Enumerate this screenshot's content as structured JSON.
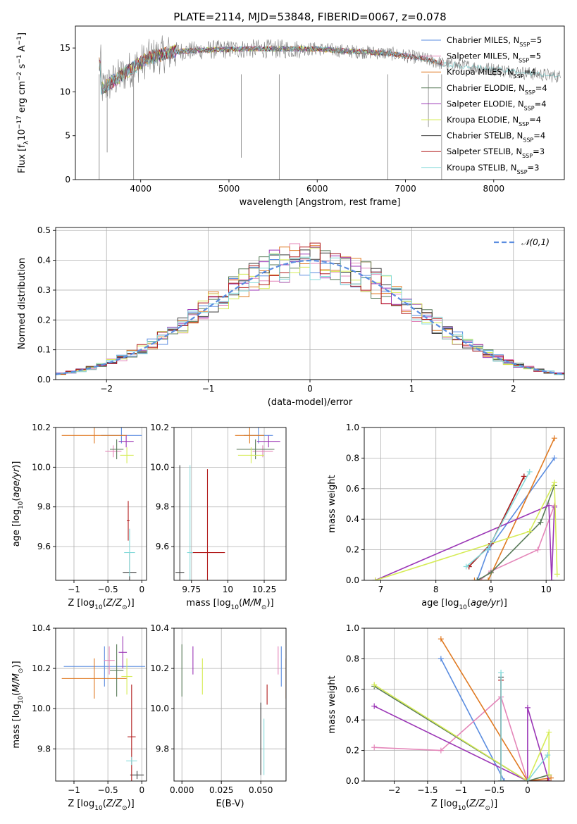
{
  "figure": {
    "title": "PLATE=2114, MJD=53848, FIBERID=0067, z=0.078"
  },
  "models": [
    {
      "key": "chabrier_miles",
      "label": "Chabrier MILES, N",
      "sub": "SSP",
      "suffix": "=5",
      "color": "#5b8de0"
    },
    {
      "key": "salpeter_miles",
      "label": "Salpeter MILES, N",
      "sub": "SSP",
      "suffix": "=5",
      "color": "#e486b9"
    },
    {
      "key": "kroupa_miles",
      "label": "Kroupa MILES, N",
      "sub": "SSP",
      "suffix": "=4",
      "color": "#e07a22"
    },
    {
      "key": "chabrier_elodie",
      "label": "Chabrier ELODIE, N",
      "sub": "SSP",
      "suffix": "=4",
      "color": "#587a58"
    },
    {
      "key": "salpeter_elodie",
      "label": "Salpeter ELODIE, N",
      "sub": "SSP",
      "suffix": "=4",
      "color": "#9b36b6"
    },
    {
      "key": "kroupa_elodie",
      "label": "Kroupa ELODIE, N",
      "sub": "SSP",
      "suffix": "=4",
      "color": "#d6ec57"
    },
    {
      "key": "chabrier_stelib",
      "label": "Chabrier STELIB, N",
      "sub": "SSP",
      "suffix": "=4",
      "color": "#3f3f3f"
    },
    {
      "key": "salpeter_stelib",
      "label": "Salpeter STELIB, N",
      "sub": "SSP",
      "suffix": "=3",
      "color": "#b21c1c"
    },
    {
      "key": "kroupa_stelib",
      "label": "Kroupa STELIB, N",
      "sub": "SSP",
      "suffix": "=3",
      "color": "#86dada"
    }
  ],
  "chart_data": [
    {
      "id": "spectrum",
      "type": "line",
      "xlabel": "wavelength [Angstrom, rest frame]",
      "ylabel": "Flux [f_λ 10^-17 erg cm^-2 s^-1 A^-1]",
      "xlim": [
        3260,
        8800
      ],
      "ylim": [
        0,
        17.5
      ],
      "xticks": [
        4000,
        5000,
        6000,
        7000,
        8000
      ],
      "yticks": [
        0,
        5,
        10,
        15
      ],
      "legend_position": "upper-right",
      "data_color": "#808080",
      "continuum": {
        "x": [
          3550,
          3700,
          3900,
          4100,
          4400,
          4800,
          5200,
          5600,
          6000,
          6400,
          6800,
          7200,
          7420
        ],
        "y": [
          10.3,
          11.3,
          12.7,
          13.9,
          14.6,
          14.8,
          14.9,
          14.9,
          14.9,
          14.6,
          14.4,
          13.8,
          13.2
        ]
      }
    },
    {
      "id": "residuals",
      "type": "histogram",
      "xlabel": "(data-model)/error",
      "ylabel": "Normed distribution",
      "xlim": [
        -2.5,
        2.5
      ],
      "ylim": [
        0,
        0.51
      ],
      "xticks": [
        -2,
        -1,
        0,
        1,
        2
      ],
      "yticks": [
        0.0,
        0.1,
        0.2,
        0.3,
        0.4,
        0.5
      ],
      "bin_width": 0.1,
      "reference": {
        "name": "𝒩(0,1)",
        "color": "#5b8de0",
        "style": "dashed"
      },
      "legend_position": "upper-right"
    },
    {
      "id": "age_vs_Z",
      "type": "errorbar",
      "xlabel": "Z [log10(Z/Z⊙)]",
      "ylabel": "age [log10(age/yr)]",
      "xlim": [
        -1.27,
        0.07
      ],
      "ylim": [
        9.43,
        10.2
      ],
      "xticks": [
        -1.0,
        -0.5,
        0.0
      ],
      "yticks": [
        9.6,
        9.8,
        10.0,
        10.2
      ],
      "points": [
        {
          "model": "chabrier_miles",
          "x": -0.3,
          "xerr": 0.3,
          "y": 10.16,
          "yerr": 0.04
        },
        {
          "model": "salpeter_miles",
          "x": -0.42,
          "xerr": 0.12,
          "y": 10.08,
          "yerr": 0.03
        },
        {
          "model": "kroupa_miles",
          "x": -0.7,
          "xerr": 0.48,
          "y": 10.16,
          "yerr": 0.04
        },
        {
          "model": "chabrier_elodie",
          "x": -0.37,
          "xerr": 0.1,
          "y": 10.09,
          "yerr": 0.05
        },
        {
          "model": "salpeter_elodie",
          "x": -0.23,
          "xerr": 0.11,
          "y": 10.13,
          "yerr": 0.03
        },
        {
          "model": "kroupa_elodie",
          "x": -0.22,
          "xerr": 0.1,
          "y": 10.06,
          "yerr": 0.04
        },
        {
          "model": "chabrier_stelib",
          "x": -0.18,
          "xerr": 0.1,
          "y": 9.47,
          "yerr": 0.1
        },
        {
          "model": "salpeter_stelib",
          "x": -0.2,
          "xerr": 0.02,
          "y": 9.73,
          "yerr": 0.1
        },
        {
          "model": "kroupa_stelib",
          "x": -0.18,
          "xerr": 0.08,
          "y": 9.57,
          "yerr": 0.12
        }
      ]
    },
    {
      "id": "age_vs_mass",
      "type": "errorbar",
      "xlabel": "mass [log10(M/M⊙)]",
      "ylabel": "",
      "xlim": [
        9.63,
        10.4
      ],
      "ylim": [
        9.43,
        10.2
      ],
      "xticks": [
        9.75,
        10.0,
        10.25
      ],
      "yticks": [
        9.6,
        9.8,
        10.0,
        10.2
      ],
      "points": [
        {
          "model": "chabrier_miles",
          "x": 10.21,
          "xerr": 0.1,
          "y": 10.16,
          "yerr": 0.04
        },
        {
          "model": "salpeter_miles",
          "x": 10.24,
          "xerr": 0.07,
          "y": 10.08,
          "yerr": 0.03
        },
        {
          "model": "kroupa_miles",
          "x": 10.15,
          "xerr": 0.1,
          "y": 10.16,
          "yerr": 0.04
        },
        {
          "model": "chabrier_elodie",
          "x": 10.19,
          "xerr": 0.13,
          "y": 10.09,
          "yerr": 0.05
        },
        {
          "model": "salpeter_elodie",
          "x": 10.28,
          "xerr": 0.08,
          "y": 10.13,
          "yerr": 0.03
        },
        {
          "model": "kroupa_elodie",
          "x": 10.16,
          "xerr": 0.09,
          "y": 10.06,
          "yerr": 0.04
        },
        {
          "model": "chabrier_stelib",
          "x": 9.67,
          "xerr": 0.03,
          "y": 9.47,
          "yerr": 0.54
        },
        {
          "model": "salpeter_stelib",
          "x": 9.86,
          "xerr": 0.12,
          "y": 9.57,
          "yerr": 0.42
        },
        {
          "model": "kroupa_stelib",
          "x": 9.74,
          "xerr": 0.02,
          "y": 9.57,
          "yerr": 0.44
        }
      ]
    },
    {
      "id": "mass_weight_vs_age",
      "type": "line",
      "xlabel": "age [log10(age/yr)]",
      "ylabel": "mass weight",
      "xlim": [
        6.7,
        10.33
      ],
      "ylim": [
        0,
        1
      ],
      "xticks": [
        7,
        8,
        9,
        10
      ],
      "yticks": [
        0.0,
        0.2,
        0.4,
        0.6,
        0.8,
        1.0
      ],
      "series": [
        {
          "model": "chabrier_miles",
          "x": [
            8.75,
            8.95,
            10.15
          ],
          "y": [
            0.0,
            0.2,
            0.8
          ]
        },
        {
          "model": "salpeter_miles",
          "x": [
            8.8,
            9.0,
            9.85,
            10.15
          ],
          "y": [
            0.0,
            0.06,
            0.2,
            0.49
          ]
        },
        {
          "model": "kroupa_miles",
          "x": [
            8.7,
            8.95,
            10.15
          ],
          "y": [
            0.0,
            0.0,
            0.93
          ]
        },
        {
          "model": "chabrier_elodie",
          "x": [
            8.75,
            9.0,
            9.9,
            10.15
          ],
          "y": [
            0.0,
            0.05,
            0.38,
            0.62
          ]
        },
        {
          "model": "salpeter_elodie",
          "x": [
            6.9,
            10.05,
            10.1,
            10.15
          ],
          "y": [
            0.0,
            0.49,
            0.0,
            0.48
          ]
        },
        {
          "model": "kroupa_elodie",
          "x": [
            6.9,
            9.7,
            10.15,
            10.2
          ],
          "y": [
            0.0,
            0.32,
            0.64,
            0.04
          ]
        },
        {
          "model": "chabrier_stelib",
          "x": [
            8.6,
            9.0,
            9.6
          ],
          "y": [
            0.09,
            0.24,
            0.68
          ]
        },
        {
          "model": "salpeter_stelib",
          "x": [
            8.6,
            9.0,
            9.6
          ],
          "y": [
            0.09,
            0.24,
            0.68
          ]
        },
        {
          "model": "kroupa_stelib",
          "x": [
            8.55,
            8.95,
            9.7
          ],
          "y": [
            0.09,
            0.21,
            0.71
          ]
        }
      ]
    },
    {
      "id": "mass_vs_Z",
      "type": "errorbar",
      "xlabel": "Z [log10(Z/Z⊙)]",
      "ylabel": "mass [log10(M/M⊙)]",
      "xlim": [
        -1.27,
        0.07
      ],
      "ylim": [
        9.64,
        10.4
      ],
      "xticks": [
        -1.0,
        -0.5,
        0.0
      ],
      "yticks": [
        9.8,
        10.0,
        10.2,
        10.4
      ],
      "points": [
        {
          "model": "chabrier_miles",
          "x": -0.55,
          "xerr": 0.6,
          "y": 10.21,
          "yerr": 0.1
        },
        {
          "model": "salpeter_miles",
          "x": -0.48,
          "xerr": 0.08,
          "y": 10.24,
          "yerr": 0.07
        },
        {
          "model": "kroupa_miles",
          "x": -0.7,
          "xerr": 0.48,
          "y": 10.15,
          "yerr": 0.1
        },
        {
          "model": "chabrier_elodie",
          "x": -0.37,
          "xerr": 0.1,
          "y": 10.19,
          "yerr": 0.13
        },
        {
          "model": "salpeter_elodie",
          "x": -0.28,
          "xerr": 0.06,
          "y": 10.28,
          "yerr": 0.08
        },
        {
          "model": "kroupa_elodie",
          "x": -0.22,
          "xerr": 0.08,
          "y": 10.16,
          "yerr": 0.09
        },
        {
          "model": "chabrier_stelib",
          "x": -0.07,
          "xerr": 0.1,
          "y": 9.67,
          "yerr": 0.02
        },
        {
          "model": "salpeter_stelib",
          "x": -0.15,
          "xerr": 0.06,
          "y": 9.86,
          "yerr": 0.26
        },
        {
          "model": "kroupa_stelib",
          "x": -0.15,
          "xerr": 0.08,
          "y": 9.74,
          "yerr": 0.02
        }
      ]
    },
    {
      "id": "mass_vs_ebv",
      "type": "errorbar",
      "xlabel": "E(B-V)",
      "ylabel": "",
      "xlim": [
        -0.005,
        0.066
      ],
      "ylim": [
        9.64,
        10.4
      ],
      "xticks": [
        0.0,
        0.025,
        0.05
      ],
      "xtick_labels": [
        "0.000",
        "0.025",
        "0.050"
      ],
      "yticks": [
        9.8,
        10.0,
        10.2,
        10.4
      ],
      "points": [
        {
          "model": "chabrier_miles",
          "x": 0.063,
          "xerr": 0,
          "y": 10.21,
          "yerr": 0.1
        },
        {
          "model": "salpeter_miles",
          "x": 0.061,
          "xerr": 0,
          "y": 10.24,
          "yerr": 0.07
        },
        {
          "model": "kroupa_miles",
          "x": 0.066,
          "xerr": 0,
          "y": 10.15,
          "yerr": 0.1
        },
        {
          "model": "chabrier_elodie",
          "x": 0.0,
          "xerr": 0,
          "y": 10.19,
          "yerr": 0.13
        },
        {
          "model": "salpeter_elodie",
          "x": 0.007,
          "xerr": 0,
          "y": 10.24,
          "yerr": 0.07
        },
        {
          "model": "kroupa_elodie",
          "x": 0.013,
          "xerr": 0,
          "y": 10.16,
          "yerr": 0.09
        },
        {
          "model": "chabrier_stelib",
          "x": 0.05,
          "xerr": 0,
          "y": 9.85,
          "yerr": 0.18
        },
        {
          "model": "salpeter_stelib",
          "x": 0.054,
          "xerr": 0,
          "y": 10.07,
          "yerr": 0.05
        },
        {
          "model": "kroupa_stelib",
          "x": 0.052,
          "xerr": 0,
          "y": 9.81,
          "yerr": 0.14
        }
      ]
    },
    {
      "id": "mass_weight_vs_Z",
      "type": "line",
      "xlabel": "Z [log10(Z/Z⊙)]",
      "ylabel": "mass weight",
      "xlim": [
        -2.45,
        0.55
      ],
      "ylim": [
        0,
        1
      ],
      "xticks": [
        -2.0,
        -1.5,
        -1.0,
        -0.5,
        0.0
      ],
      "yticks": [
        0.0,
        0.2,
        0.4,
        0.6,
        0.8,
        1.0
      ],
      "series": [
        {
          "model": "chabrier_miles",
          "x": [
            -1.3,
            -0.35,
            0.0
          ],
          "y": [
            0.8,
            0.0,
            0.0
          ]
        },
        {
          "model": "salpeter_miles",
          "x": [
            -2.3,
            -1.3,
            -0.4,
            0.0
          ],
          "y": [
            0.22,
            0.2,
            0.55,
            0.0
          ]
        },
        {
          "model": "kroupa_miles",
          "x": [
            -1.3,
            0.0,
            0.35
          ],
          "y": [
            0.93,
            0.0,
            0.02
          ]
        },
        {
          "model": "chabrier_elodie",
          "x": [
            -2.3,
            0.0,
            0.32
          ],
          "y": [
            0.62,
            0.0,
            0.04
          ]
        },
        {
          "model": "salpeter_elodie",
          "x": [
            -2.3,
            0.0,
            0.0,
            0.32
          ],
          "y": [
            0.49,
            0.0,
            0.48,
            0.0
          ]
        },
        {
          "model": "kroupa_elodie",
          "x": [
            -2.3,
            0.0,
            0.32,
            0.32
          ],
          "y": [
            0.63,
            0.0,
            0.32,
            0.04
          ]
        },
        {
          "model": "chabrier_stelib",
          "x": [
            -0.4,
            -0.4,
            0.0,
            0.3
          ],
          "y": [
            0.68,
            0.0,
            0.0,
            0.0
          ]
        },
        {
          "model": "salpeter_stelib",
          "x": [
            -0.4,
            -0.4,
            0.0,
            0.3
          ],
          "y": [
            0.66,
            0.0,
            0.0,
            0.0
          ]
        },
        {
          "model": "kroupa_stelib",
          "x": [
            -0.4,
            -0.4,
            0.0,
            0.3
          ],
          "y": [
            0.71,
            0.0,
            0.0,
            0.17
          ]
        }
      ]
    }
  ]
}
